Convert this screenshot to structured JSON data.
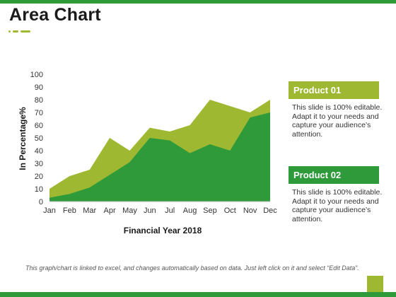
{
  "slide": {
    "title": "Area Chart",
    "footer_note": "This graph/chart is linked to excel, and changes automatically based on data. Just left click on it and select “Edit Data”."
  },
  "colors": {
    "brand_green": "#2e9a3a",
    "accent_olive": "#9fb832",
    "product_01": "#9fb832",
    "product_02": "#2e9a3a"
  },
  "legend": {
    "product_01": {
      "label": "Product 01",
      "description": "This slide is 100% editable. Adapt it to your needs and capture your audience’s attention."
    },
    "product_02": {
      "label": "Product 02",
      "description": "This slide is 100% editable. Adapt it to your needs and capture your audience’s attention."
    }
  },
  "chart_data": {
    "type": "area",
    "title": "",
    "xlabel": "Financial Year 2018",
    "ylabel": "In Percentage%",
    "categories": [
      "Jan",
      "Feb",
      "Mar",
      "Apr",
      "May",
      "Jun",
      "Jul",
      "Aug",
      "Sep",
      "Oct",
      "Nov",
      "Dec"
    ],
    "ylim": [
      0,
      100
    ],
    "yticks": [
      0,
      10,
      20,
      30,
      40,
      50,
      60,
      70,
      80,
      90,
      100
    ],
    "grid": false,
    "legend_position": "right",
    "series": [
      {
        "name": "Product 01",
        "color": "#9fb832",
        "values": [
          10,
          20,
          25,
          50,
          40,
          58,
          55,
          60,
          80,
          75,
          70,
          80
        ]
      },
      {
        "name": "Product 02",
        "color": "#2e9a3a",
        "values": [
          3,
          6,
          11,
          21,
          31,
          50,
          48,
          38,
          45,
          40,
          66,
          70
        ]
      }
    ]
  }
}
